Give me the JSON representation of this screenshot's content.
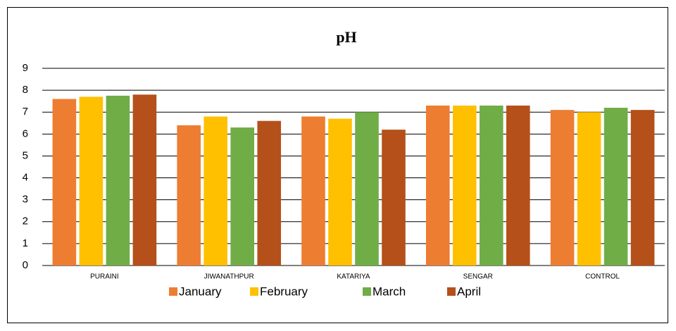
{
  "chart_data": {
    "type": "bar",
    "title": "pH",
    "categories": [
      "PURAINI",
      "JIWANATHPUR",
      "KATARIYA",
      "SENGAR",
      "CONTROL"
    ],
    "series": [
      {
        "name": "January",
        "color": "#ed7d31",
        "values": [
          7.6,
          6.4,
          6.8,
          7.3,
          7.1
        ]
      },
      {
        "name": "February",
        "color": "#ffc000",
        "values": [
          7.7,
          6.8,
          6.7,
          7.3,
          7.0
        ]
      },
      {
        "name": "March",
        "color": "#70ad47",
        "values": [
          7.75,
          6.3,
          7.0,
          7.3,
          7.2
        ]
      },
      {
        "name": "April",
        "color": "#b5501a",
        "values": [
          7.8,
          6.6,
          6.2,
          7.3,
          7.1
        ]
      }
    ],
    "ylim": [
      0,
      9
    ],
    "yticks": [
      0,
      1,
      2,
      3,
      4,
      5,
      6,
      7,
      8,
      9
    ],
    "grid": true,
    "legend": "bottom"
  }
}
